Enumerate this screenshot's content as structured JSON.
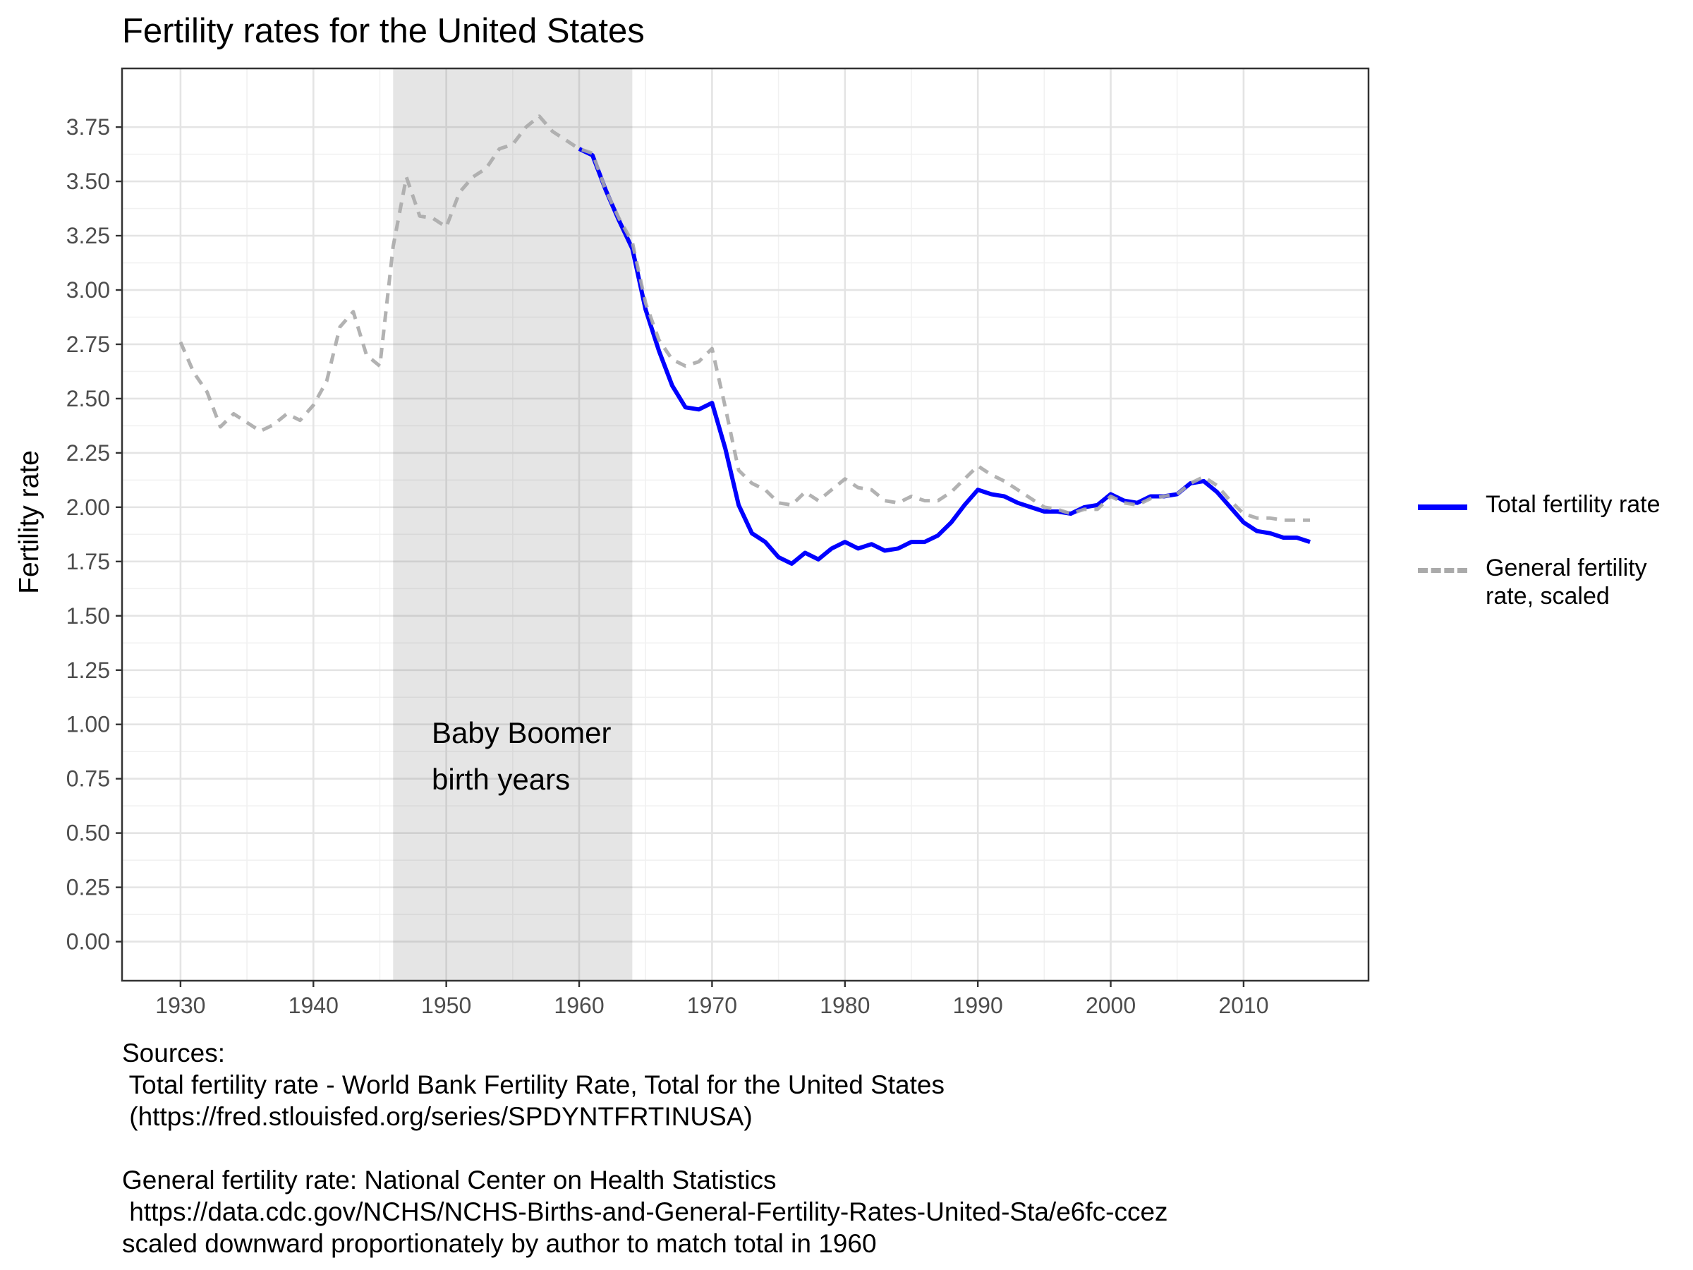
{
  "chart_data": {
    "type": "line",
    "title": "Fertility rates for the United States",
    "xlabel": "",
    "ylabel": "Fertility rate",
    "xlim": [
      1925.6,
      2019.4
    ],
    "ylim": [
      -0.18,
      4.02
    ],
    "x_ticks": [
      1930,
      1940,
      1950,
      1960,
      1970,
      1980,
      1990,
      2000,
      2010
    ],
    "y_ticks": [
      "0.00",
      "0.25",
      "0.50",
      "0.75",
      "1.00",
      "1.25",
      "1.50",
      "1.75",
      "2.00",
      "2.25",
      "2.50",
      "2.75",
      "3.00",
      "3.25",
      "3.50",
      "3.75"
    ],
    "grid": true,
    "legend_position": "right",
    "shaded_region": {
      "x_start": 1946,
      "x_end": 1964,
      "label_lines": [
        "Baby Boomer",
        "birth years"
      ]
    },
    "series": [
      {
        "name": "Total fertility rate",
        "style": "solid",
        "color": "#0000ff",
        "x": [
          1960,
          1961,
          1962,
          1963,
          1964,
          1965,
          1966,
          1967,
          1968,
          1969,
          1970,
          1971,
          1972,
          1973,
          1974,
          1975,
          1976,
          1977,
          1978,
          1979,
          1980,
          1981,
          1982,
          1983,
          1984,
          1985,
          1986,
          1987,
          1988,
          1989,
          1990,
          1991,
          1992,
          1993,
          1994,
          1995,
          1996,
          1997,
          1998,
          1999,
          2000,
          2001,
          2002,
          2003,
          2004,
          2005,
          2006,
          2007,
          2008,
          2009,
          2010,
          2011,
          2012,
          2013,
          2014,
          2015
        ],
        "y": [
          3.65,
          3.62,
          3.46,
          3.32,
          3.19,
          2.91,
          2.72,
          2.56,
          2.46,
          2.45,
          2.48,
          2.27,
          2.01,
          1.88,
          1.84,
          1.77,
          1.74,
          1.79,
          1.76,
          1.81,
          1.84,
          1.81,
          1.83,
          1.8,
          1.81,
          1.84,
          1.84,
          1.87,
          1.93,
          2.01,
          2.08,
          2.06,
          2.05,
          2.02,
          2.0,
          1.98,
          1.98,
          1.97,
          2.0,
          2.01,
          2.06,
          2.03,
          2.02,
          2.05,
          2.05,
          2.06,
          2.11,
          2.12,
          2.07,
          2.0,
          1.93,
          1.89,
          1.88,
          1.86,
          1.86,
          1.84
        ]
      },
      {
        "name": "General fertility rate, scaled",
        "style": "dashed",
        "color": "#aaaaaa",
        "x": [
          1930,
          1931,
          1932,
          1933,
          1934,
          1935,
          1936,
          1937,
          1938,
          1939,
          1940,
          1941,
          1942,
          1943,
          1944,
          1945,
          1946,
          1947,
          1948,
          1949,
          1950,
          1951,
          1952,
          1953,
          1954,
          1955,
          1956,
          1957,
          1958,
          1959,
          1960,
          1961,
          1962,
          1963,
          1964,
          1965,
          1966,
          1967,
          1968,
          1969,
          1970,
          1971,
          1972,
          1973,
          1974,
          1975,
          1976,
          1977,
          1978,
          1979,
          1980,
          1981,
          1982,
          1983,
          1984,
          1985,
          1986,
          1987,
          1988,
          1989,
          1990,
          1991,
          1992,
          1993,
          1994,
          1995,
          1996,
          1997,
          1998,
          1999,
          2000,
          2001,
          2002,
          2003,
          2004,
          2005,
          2006,
          2007,
          2008,
          2009,
          2010,
          2011,
          2012,
          2013,
          2014,
          2015
        ],
        "y": [
          2.76,
          2.62,
          2.53,
          2.37,
          2.43,
          2.39,
          2.35,
          2.38,
          2.43,
          2.4,
          2.47,
          2.58,
          2.83,
          2.9,
          2.7,
          2.65,
          3.2,
          3.52,
          3.34,
          3.33,
          3.29,
          3.45,
          3.52,
          3.56,
          3.65,
          3.67,
          3.75,
          3.8,
          3.73,
          3.69,
          3.65,
          3.63,
          3.46,
          3.33,
          3.22,
          2.94,
          2.77,
          2.68,
          2.65,
          2.67,
          2.73,
          2.46,
          2.17,
          2.11,
          2.08,
          2.02,
          2.01,
          2.07,
          2.03,
          2.08,
          2.13,
          2.09,
          2.08,
          2.03,
          2.02,
          2.05,
          2.03,
          2.03,
          2.07,
          2.13,
          2.19,
          2.15,
          2.12,
          2.08,
          2.04,
          2.0,
          1.99,
          1.97,
          1.99,
          1.99,
          2.05,
          2.02,
          2.01,
          2.04,
          2.05,
          2.06,
          2.11,
          2.14,
          2.1,
          2.03,
          1.97,
          1.95,
          1.95,
          1.94,
          1.94,
          1.94
        ]
      }
    ]
  },
  "caption": {
    "lines": [
      "Sources:",
      " Total fertility rate - World Bank Fertility Rate, Total for the United States",
      " (https://fred.stlouisfed.org/series/SPDYNTFRTINUSA)",
      "",
      "General fertility rate: National Center on Health Statistics",
      " https://data.cdc.gov/NCHS/NCHS-Births-and-General-Fertility-Rates-United-Sta/e6fc-ccez",
      "scaled downward proportionately by author to match total in 1960"
    ]
  }
}
